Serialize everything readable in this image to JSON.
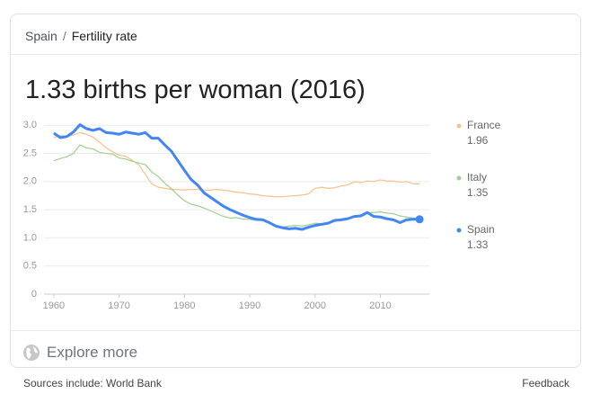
{
  "breadcrumb": {
    "items": [
      "Spain",
      "Fertility rate"
    ],
    "separator": "/"
  },
  "headline": "1.33 births per woman (2016)",
  "explore": "Explore more",
  "footer": {
    "source": "Sources include: World Bank",
    "feedback": "Feedback"
  },
  "chart_data": {
    "type": "line",
    "x": [
      1960,
      1961,
      1962,
      1963,
      1964,
      1965,
      1966,
      1967,
      1968,
      1969,
      1970,
      1971,
      1972,
      1973,
      1974,
      1975,
      1976,
      1977,
      1978,
      1979,
      1980,
      1981,
      1982,
      1983,
      1984,
      1985,
      1986,
      1987,
      1988,
      1989,
      1990,
      1991,
      1992,
      1993,
      1994,
      1995,
      1996,
      1997,
      1998,
      1999,
      2000,
      2001,
      2002,
      2003,
      2004,
      2005,
      2006,
      2007,
      2008,
      2009,
      2010,
      2011,
      2012,
      2013,
      2014,
      2015,
      2016
    ],
    "series": [
      {
        "name": "France",
        "color": "#f7c28b",
        "values": [
          2.78,
          2.82,
          2.8,
          2.83,
          2.87,
          2.84,
          2.79,
          2.7,
          2.6,
          2.53,
          2.47,
          2.45,
          2.38,
          2.3,
          2.13,
          1.96,
          1.9,
          1.88,
          1.86,
          1.86,
          1.85,
          1.86,
          1.86,
          1.85,
          1.85,
          1.86,
          1.85,
          1.83,
          1.81,
          1.8,
          1.78,
          1.77,
          1.75,
          1.74,
          1.73,
          1.73,
          1.74,
          1.75,
          1.76,
          1.78,
          1.88,
          1.9,
          1.88,
          1.89,
          1.92,
          1.94,
          2.0,
          1.98,
          2.01,
          2.0,
          2.03,
          2.01,
          2.01,
          1.99,
          2.0,
          1.96,
          1.96
        ]
      },
      {
        "name": "Italy",
        "color": "#9fd08f",
        "values": [
          2.37,
          2.41,
          2.44,
          2.5,
          2.65,
          2.6,
          2.58,
          2.52,
          2.5,
          2.49,
          2.42,
          2.4,
          2.36,
          2.33,
          2.3,
          2.17,
          2.09,
          1.97,
          1.87,
          1.76,
          1.66,
          1.6,
          1.57,
          1.53,
          1.48,
          1.43,
          1.38,
          1.35,
          1.36,
          1.33,
          1.33,
          1.31,
          1.31,
          1.26,
          1.22,
          1.19,
          1.21,
          1.22,
          1.21,
          1.23,
          1.26,
          1.25,
          1.27,
          1.29,
          1.34,
          1.34,
          1.37,
          1.4,
          1.45,
          1.45,
          1.46,
          1.44,
          1.43,
          1.39,
          1.37,
          1.35,
          1.35
        ]
      },
      {
        "name": "Spain",
        "color": "#4285f4",
        "values": [
          2.86,
          2.78,
          2.8,
          2.88,
          3.01,
          2.94,
          2.91,
          2.94,
          2.87,
          2.86,
          2.84,
          2.88,
          2.86,
          2.84,
          2.87,
          2.77,
          2.77,
          2.65,
          2.54,
          2.37,
          2.2,
          2.04,
          1.94,
          1.8,
          1.72,
          1.64,
          1.56,
          1.5,
          1.45,
          1.4,
          1.36,
          1.33,
          1.32,
          1.27,
          1.21,
          1.18,
          1.16,
          1.17,
          1.15,
          1.19,
          1.22,
          1.24,
          1.26,
          1.31,
          1.32,
          1.34,
          1.38,
          1.39,
          1.45,
          1.38,
          1.37,
          1.34,
          1.32,
          1.27,
          1.32,
          1.33,
          1.33
        ]
      }
    ],
    "xlim": [
      1958.5,
      2017.5
    ],
    "xticks": [
      1960,
      1970,
      1980,
      1990,
      2000,
      2010
    ],
    "ylim": [
      0,
      3.1
    ],
    "yticks": [
      0,
      {
        "value": 0.5,
        "label": "0.5"
      },
      {
        "value": 1,
        "label": "1.0"
      },
      {
        "value": 1.5,
        "label": "1.5"
      },
      {
        "value": 2,
        "label": "2.0"
      },
      {
        "value": 2.5,
        "label": "2.5"
      },
      {
        "value": 3,
        "label": "3.0"
      }
    ],
    "grid": true
  }
}
